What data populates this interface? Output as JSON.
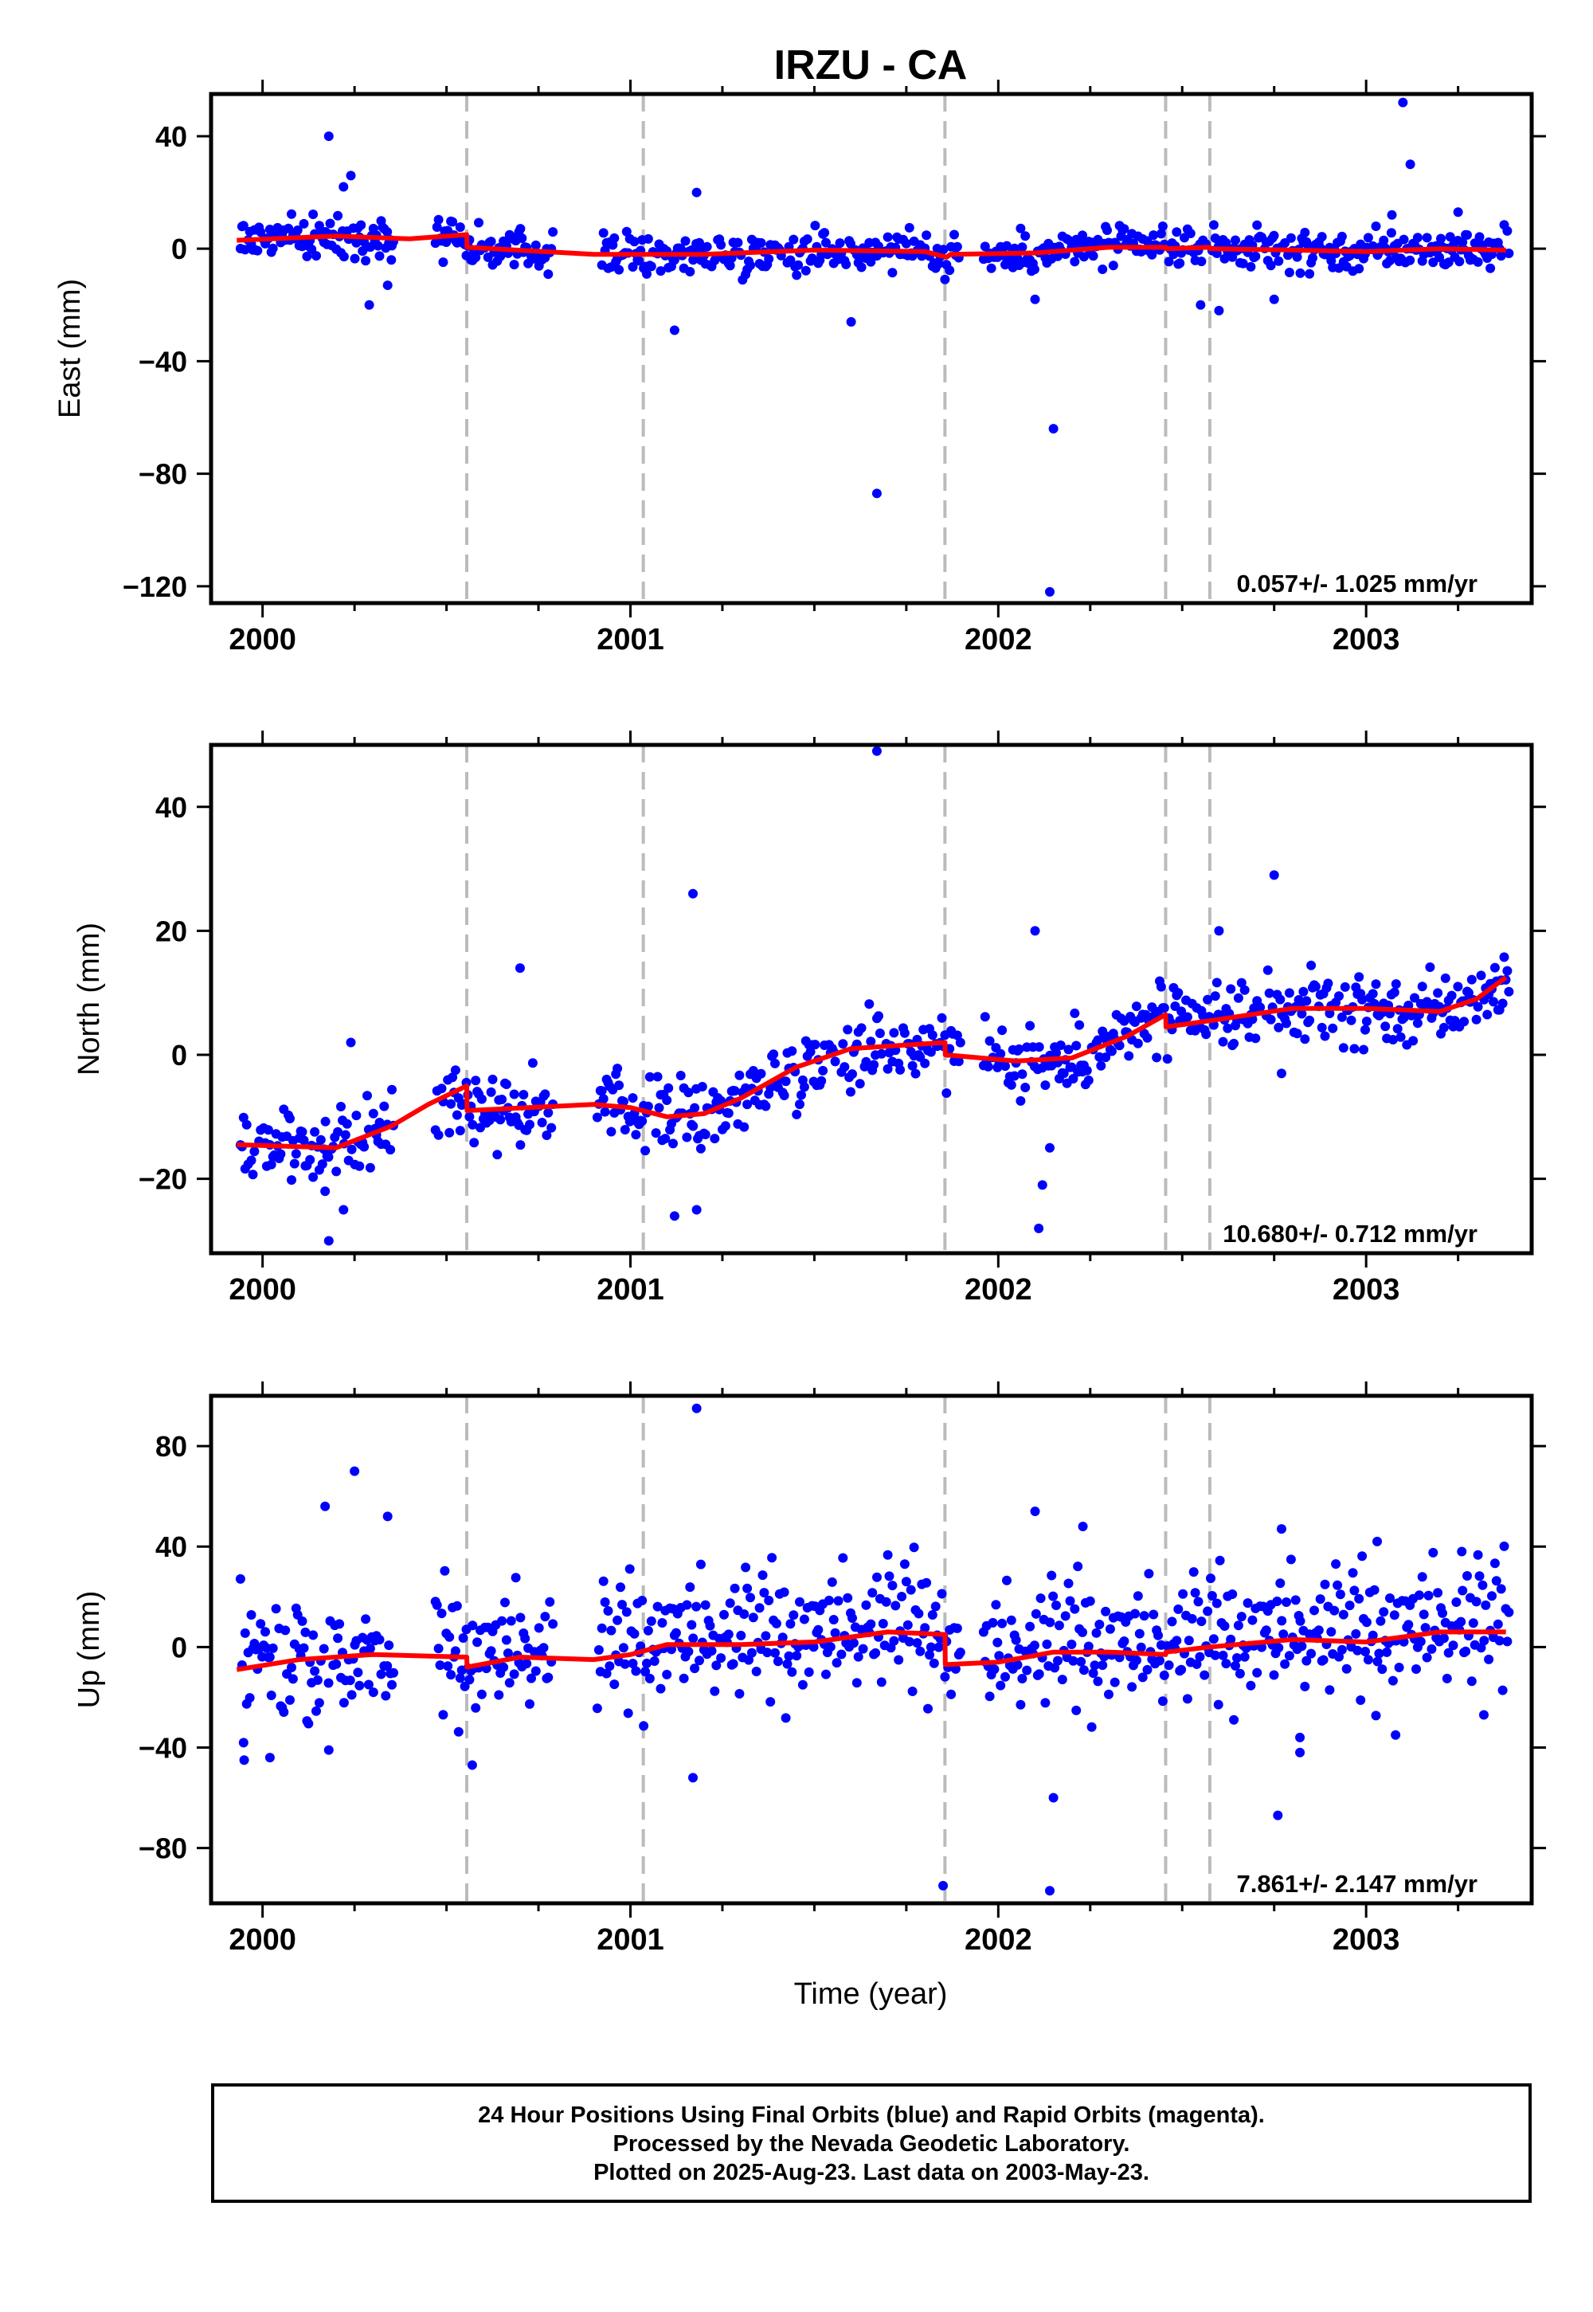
{
  "chart_data": {
    "type": "scatter",
    "title": "IRZU - CA",
    "xlabel": "Time (year)",
    "x_ticks": [
      "2000",
      "2001",
      "2002",
      "2003"
    ],
    "x_range": [
      1999.86,
      2003.45
    ],
    "steps": [
      2000.555,
      2001.035,
      2001.855,
      2002.455,
      2002.575
    ],
    "colors": {
      "data": "#0000ff",
      "model": "#ff0000",
      "steps": "#bbbbbb",
      "frame": "#000000"
    },
    "panels": [
      {
        "name": "east",
        "ylabel": "East (mm)",
        "ylim": [
          -126,
          55
        ],
        "yticks": [
          40,
          0,
          -40,
          -80,
          -120
        ],
        "ytick_labels": [
          "40",
          "0",
          "−40",
          "−80",
          "−120"
        ],
        "rate": "0.057+/- 1.025 mm/yr",
        "model": [
          [
            1999.93,
            3
          ],
          [
            2000.2,
            4.5
          ],
          [
            2000.4,
            3.5
          ],
          [
            2000.555,
            5
          ],
          [
            2000.556,
            0.5
          ],
          [
            2000.9,
            -2
          ],
          [
            2001.2,
            -2
          ],
          [
            2001.5,
            -0.5
          ],
          [
            2001.8,
            -1
          ],
          [
            2001.86,
            -3
          ],
          [
            2001.87,
            -2
          ],
          [
            2002.1,
            -1.5
          ],
          [
            2002.3,
            0.5
          ],
          [
            2002.455,
            0.5
          ],
          [
            2002.456,
            0
          ],
          [
            2002.575,
            0.5
          ],
          [
            2002.576,
            0
          ],
          [
            2002.8,
            -0.5
          ],
          [
            2003.0,
            -1
          ],
          [
            2003.2,
            0
          ],
          [
            2003.38,
            -0.5
          ]
        ],
        "outliers": [
          [
            2000.18,
            40
          ],
          [
            2000.22,
            22
          ],
          [
            2000.24,
            26
          ],
          [
            2000.29,
            -20
          ],
          [
            2000.34,
            -13
          ],
          [
            2000.35,
            -4
          ],
          [
            2001.12,
            -29
          ],
          [
            2001.18,
            20
          ],
          [
            2001.6,
            -26
          ],
          [
            2001.67,
            -87
          ],
          [
            2002.1,
            -18
          ],
          [
            2002.15,
            -64
          ],
          [
            2002.14,
            -122
          ],
          [
            2002.55,
            -20
          ],
          [
            2002.6,
            -22
          ],
          [
            2002.75,
            -18
          ],
          [
            2003.1,
            52
          ],
          [
            2003.12,
            30
          ],
          [
            2003.07,
            12
          ],
          [
            2003.25,
            13
          ]
        ],
        "scatter": 3.5
      },
      {
        "name": "north",
        "ylabel": "North (mm)",
        "ylim": [
          -32,
          50
        ],
        "yticks": [
          40,
          20,
          0,
          -20
        ],
        "ytick_labels": [
          "40",
          "20",
          "0",
          "−20"
        ],
        "rate": "10.680+/- 0.712 mm/yr",
        "model": [
          [
            1999.93,
            -14.5
          ],
          [
            2000.2,
            -15
          ],
          [
            2000.35,
            -11.5
          ],
          [
            2000.45,
            -8
          ],
          [
            2000.555,
            -5
          ],
          [
            2000.556,
            -9
          ],
          [
            2000.9,
            -8
          ],
          [
            2001.0,
            -8.5
          ],
          [
            2001.1,
            -10
          ],
          [
            2001.2,
            -9.5
          ],
          [
            2001.3,
            -7
          ],
          [
            2001.45,
            -2
          ],
          [
            2001.6,
            1
          ],
          [
            2001.855,
            2
          ],
          [
            2001.856,
            0
          ],
          [
            2002.05,
            -1
          ],
          [
            2002.2,
            -0.5
          ],
          [
            2002.35,
            3
          ],
          [
            2002.455,
            6.5
          ],
          [
            2002.456,
            4.5
          ],
          [
            2002.575,
            5.5
          ],
          [
            2002.576,
            5.5
          ],
          [
            2002.8,
            7.5
          ],
          [
            2003.0,
            7.5
          ],
          [
            2003.2,
            7
          ],
          [
            2003.3,
            9
          ],
          [
            2003.38,
            12.5
          ]
        ],
        "outliers": [
          [
            2000.17,
            -22
          ],
          [
            2000.18,
            -30
          ],
          [
            2000.22,
            -25
          ],
          [
            2000.24,
            2
          ],
          [
            2000.7,
            14
          ],
          [
            2001.12,
            -26
          ],
          [
            2001.17,
            26
          ],
          [
            2001.18,
            -25
          ],
          [
            2001.67,
            49
          ],
          [
            2002.1,
            20
          ],
          [
            2002.11,
            -28
          ],
          [
            2002.12,
            -21
          ],
          [
            2002.14,
            -15
          ],
          [
            2002.6,
            20
          ],
          [
            2002.75,
            29
          ],
          [
            2002.77,
            -3
          ]
        ],
        "scatter": 2.8
      },
      {
        "name": "up",
        "ylabel": "Up (mm)",
        "ylim": [
          -102,
          100
        ],
        "yticks": [
          80,
          40,
          0,
          -40,
          -80
        ],
        "ytick_labels": [
          "80",
          "40",
          "0",
          "−40",
          "−80"
        ],
        "rate": "7.861+/- 2.147 mm/yr",
        "model": [
          [
            1999.93,
            -9
          ],
          [
            2000.1,
            -5
          ],
          [
            2000.3,
            -3
          ],
          [
            2000.555,
            -4
          ],
          [
            2000.556,
            -8
          ],
          [
            2000.7,
            -4
          ],
          [
            2000.9,
            -5
          ],
          [
            2001.0,
            -3
          ],
          [
            2001.1,
            1
          ],
          [
            2001.3,
            1
          ],
          [
            2001.5,
            2
          ],
          [
            2001.7,
            6
          ],
          [
            2001.855,
            5
          ],
          [
            2001.856,
            -7
          ],
          [
            2002.0,
            -6
          ],
          [
            2002.15,
            -2
          ],
          [
            2002.3,
            -2
          ],
          [
            2002.455,
            -3
          ],
          [
            2002.456,
            -2
          ],
          [
            2002.575,
            0
          ],
          [
            2002.576,
            0
          ],
          [
            2002.8,
            3
          ],
          [
            2003.0,
            2
          ],
          [
            2003.2,
            6
          ],
          [
            2003.38,
            6
          ]
        ],
        "outliers": [
          [
            1999.95,
            -45
          ],
          [
            2000.02,
            -44
          ],
          [
            2000.17,
            56
          ],
          [
            2000.18,
            -41
          ],
          [
            2000.25,
            70
          ],
          [
            2000.34,
            52
          ],
          [
            2000.57,
            -47
          ],
          [
            2001.18,
            95
          ],
          [
            2001.17,
            -52
          ],
          [
            2001.85,
            -95
          ],
          [
            2002.14,
            -97
          ],
          [
            2002.15,
            -60
          ],
          [
            2002.1,
            54
          ],
          [
            2002.23,
            48
          ],
          [
            2002.77,
            47
          ],
          [
            2002.82,
            -36
          ],
          [
            2002.82,
            -42
          ],
          [
            2002.76,
            -67
          ],
          [
            2003.03,
            42
          ],
          [
            2003.08,
            -35
          ],
          [
            2003.26,
            38
          ],
          [
            2003.32,
            -27
          ]
        ],
        "scatter": 12
      }
    ]
  },
  "footer": {
    "line1": "24 Hour Positions Using Final Orbits (blue) and Rapid Orbits (magenta).",
    "line2": "Processed by the Nevada Geodetic Laboratory.",
    "line3": "Plotted on 2025-Aug-23. Last data on 2003-May-23."
  }
}
